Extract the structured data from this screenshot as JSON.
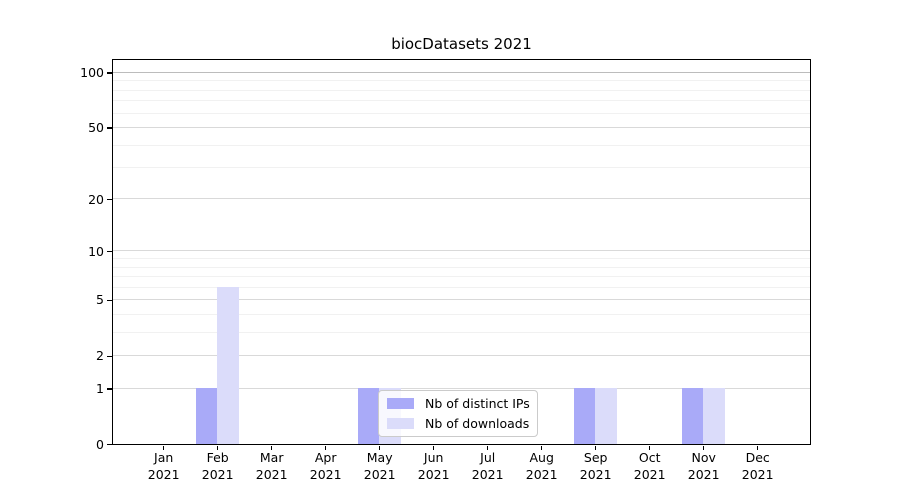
{
  "title": "biocDatasets 2021",
  "chart_data": {
    "type": "bar",
    "title": "biocDatasets 2021",
    "year": "2021",
    "months": [
      "Jan",
      "Feb",
      "Mar",
      "Apr",
      "May",
      "Jun",
      "Jul",
      "Aug",
      "Sep",
      "Oct",
      "Nov",
      "Dec"
    ],
    "series": [
      {
        "name": "Nb of distinct IPs",
        "color": "#a9aaf8",
        "values": [
          0,
          1,
          0,
          0,
          1,
          0,
          0,
          0,
          1,
          0,
          1,
          0
        ]
      },
      {
        "name": "Nb of downloads",
        "color": "#dbdcfa",
        "values": [
          0,
          6,
          0,
          0,
          1,
          0,
          0,
          0,
          1,
          0,
          1,
          0
        ]
      }
    ],
    "yscale": "log1p",
    "ylim": [
      0,
      112
    ],
    "y_major_ticks": [
      100,
      50,
      20,
      10,
      5,
      2,
      1,
      0
    ],
    "y_minor_gridlines": [
      3,
      4,
      6,
      7,
      8,
      9,
      30,
      40,
      60,
      70,
      80,
      90
    ],
    "grid": true,
    "legend_position": "lower center"
  },
  "legend": {
    "items": [
      {
        "label": "Nb of distinct IPs",
        "color": "#a9aaf8"
      },
      {
        "label": "Nb of downloads",
        "color": "#dbdcfa"
      }
    ]
  },
  "colors": {
    "grid_major": "#d9d9d9",
    "grid_top": "#bcbcbc",
    "grid_minor": "#f1f1f1",
    "spine": "#000000",
    "background": "#ffffff"
  }
}
